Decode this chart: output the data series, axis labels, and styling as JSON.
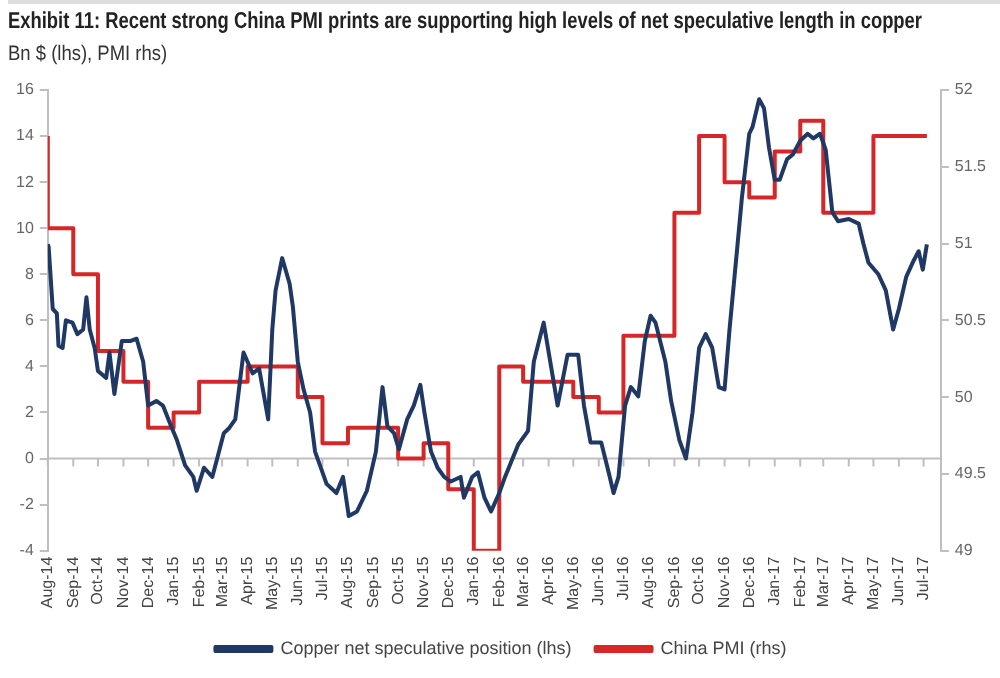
{
  "chart_data": {
    "type": "line",
    "title": "Exhibit 11: Recent strong China PMI prints are supporting high levels of net speculative length in copper",
    "subtitle": "Bn $ (lhs), PMI rhs)",
    "series": [
      {
        "name": "Copper net speculative position (lhs)",
        "color": "#1f3864",
        "x": [
          "2014-08-01",
          "2014-08-02",
          "2014-08-07",
          "2014-08-12",
          "2014-08-14",
          "2014-08-19",
          "2014-08-23",
          "2014-08-31",
          "2014-09-06",
          "2014-09-13",
          "2014-09-17",
          "2014-09-21",
          "2014-09-27",
          "2014-10-01",
          "2014-10-11",
          "2014-10-15",
          "2014-10-21",
          "2014-10-30",
          "2014-11-09",
          "2014-11-17",
          "2014-11-25",
          "2014-12-01",
          "2014-12-11",
          "2014-12-19",
          "2014-12-29",
          "2015-01-05",
          "2015-01-15",
          "2015-01-25",
          "2015-01-29",
          "2015-02-07",
          "2015-02-17",
          "2015-02-23",
          "2015-03-03",
          "2015-03-09",
          "2015-03-17",
          "2015-03-27",
          "2015-04-07",
          "2015-04-15",
          "2015-04-26",
          "2015-05-01",
          "2015-05-05",
          "2015-05-13",
          "2015-05-22",
          "2015-05-26",
          "2015-06-01",
          "2015-06-08",
          "2015-06-16",
          "2015-06-22",
          "2015-06-28",
          "2015-07-06",
          "2015-07-18",
          "2015-07-26",
          "2015-08-02",
          "2015-08-12",
          "2015-08-24",
          "2015-09-04",
          "2015-09-12",
          "2015-09-18",
          "2015-09-26",
          "2015-10-02",
          "2015-10-12",
          "2015-10-20",
          "2015-10-28",
          "2015-11-02",
          "2015-11-10",
          "2015-11-18",
          "2015-11-26",
          "2015-12-04",
          "2015-12-16",
          "2015-12-20",
          "2015-12-30",
          "2016-01-06",
          "2016-01-14",
          "2016-01-22",
          "2016-02-01",
          "2016-02-08",
          "2016-02-24",
          "2016-03-07",
          "2016-03-14",
          "2016-03-26",
          "2016-04-12",
          "2016-04-24",
          "2016-05-07",
          "2016-05-14",
          "2016-05-22",
          "2016-06-04",
          "2016-06-13",
          "2016-06-19",
          "2016-06-25",
          "2016-07-03",
          "2016-07-10",
          "2016-07-19",
          "2016-07-27",
          "2016-08-03",
          "2016-08-09",
          "2016-08-21",
          "2016-08-28",
          "2016-09-07",
          "2016-09-15",
          "2016-09-23",
          "2016-10-01",
          "2016-10-09",
          "2016-10-17",
          "2016-10-25",
          "2016-11-01",
          "2016-11-07",
          "2016-11-16",
          "2016-11-22",
          "2016-12-01",
          "2016-12-05",
          "2016-12-13",
          "2016-12-19",
          "2016-12-25",
          "2017-01-01",
          "2017-01-07",
          "2017-01-16",
          "2017-01-23",
          "2017-02-01",
          "2017-02-10",
          "2017-02-17",
          "2017-02-25",
          "2017-03-04",
          "2017-03-12",
          "2017-03-19",
          "2017-04-01",
          "2017-04-13",
          "2017-04-19",
          "2017-04-25",
          "2017-05-07",
          "2017-05-16",
          "2017-05-25",
          "2017-06-01",
          "2017-06-10",
          "2017-06-19",
          "2017-06-25",
          "2017-06-30",
          "2017-07-05"
        ],
        "values": [
          9.3,
          9.2,
          6.5,
          6.3,
          4.9,
          4.8,
          6.0,
          5.9,
          5.4,
          5.6,
          7.0,
          5.6,
          4.8,
          3.8,
          3.5,
          4.6,
          2.8,
          5.1,
          5.1,
          5.2,
          4.2,
          2.3,
          2.5,
          2.3,
          1.4,
          0.8,
          -0.3,
          -0.8,
          -1.4,
          -0.4,
          -0.8,
          0,
          1.1,
          1.3,
          1.7,
          4.6,
          3.7,
          3.9,
          1.7,
          5.6,
          7.3,
          8.7,
          7.6,
          6.6,
          4.2,
          3.0,
          2.0,
          0.3,
          -0.3,
          -1.1,
          -1.5,
          -0.8,
          -2.5,
          -2.3,
          -1.4,
          0.3,
          3.1,
          1.4,
          1.1,
          0.4,
          1.7,
          2.3,
          3.2,
          2.0,
          0.3,
          -0.4,
          -0.8,
          -1.0,
          -0.8,
          -1.7,
          -0.8,
          -0.6,
          -1.7,
          -2.3,
          -1.5,
          -0.8,
          0.6,
          1.2,
          4.2,
          5.9,
          2.3,
          4.5,
          4.5,
          2.3,
          0.7,
          0.7,
          -0.6,
          -1.5,
          -0.8,
          2.3,
          3.1,
          2.7,
          5.1,
          6.2,
          5.9,
          4.2,
          2.5,
          0.8,
          0,
          2.0,
          4.8,
          5.4,
          4.8,
          3.1,
          3.0,
          5.6,
          9.0,
          11.3,
          14.1,
          14.4,
          15.6,
          15.2,
          13.5,
          12.1,
          12.1,
          13.0,
          13.2,
          13.8,
          14.1,
          13.9,
          14.1,
          13.4,
          10.7,
          10.3,
          10.4,
          10.2,
          9.3,
          8.5,
          8.0,
          7.3,
          5.6,
          6.5,
          7.9,
          8.6,
          9.0,
          8.2,
          9.3
        ]
      },
      {
        "name": "China PMI (rhs)",
        "color": "#d62728",
        "type": "step",
        "axis": "y2",
        "x": [
          "2014-08",
          "2014-08",
          "2014-09",
          "2014-10",
          "2014-11",
          "2014-12",
          "2015-01",
          "2015-02",
          "2015-03",
          "2015-04",
          "2015-05",
          "2015-06",
          "2015-07",
          "2015-08",
          "2015-09",
          "2015-10",
          "2015-11",
          "2015-12",
          "2016-01",
          "2016-02",
          "2016-03",
          "2016-04",
          "2016-05",
          "2016-06",
          "2016-07",
          "2016-08",
          "2016-09",
          "2016-10",
          "2016-11",
          "2016-12",
          "2017-01",
          "2017-02",
          "2017-03",
          "2017-04",
          "2017-05",
          "2017-06",
          "2017-07-05"
        ],
        "values": [
          51.7,
          51.1,
          51.1,
          50.8,
          50.3,
          50.1,
          49.8,
          49.9,
          50.1,
          50.1,
          50.2,
          50.2,
          50.0,
          49.7,
          49.8,
          49.8,
          49.6,
          49.7,
          49.4,
          49.0,
          50.2,
          50.1,
          50.1,
          50.0,
          49.9,
          50.4,
          50.4,
          51.2,
          51.7,
          51.4,
          51.3,
          51.6,
          51.8,
          51.2,
          51.2,
          51.7,
          51.7
        ]
      }
    ],
    "xlim": [
      "2014-08",
      "2017-07-22"
    ],
    "xticks": [
      {
        "value": "2014-08",
        "label": "Aug-14"
      },
      {
        "value": "2014-09",
        "label": "Sep-14"
      },
      {
        "value": "2014-10",
        "label": "Oct-14"
      },
      {
        "value": "2014-11",
        "label": "Nov-14"
      },
      {
        "value": "2014-12",
        "label": "Dec-14"
      },
      {
        "value": "2015-01",
        "label": "Jan-15"
      },
      {
        "value": "2015-02",
        "label": "Feb-15"
      },
      {
        "value": "2015-03",
        "label": "Mar-15"
      },
      {
        "value": "2015-04",
        "label": "Apr-15"
      },
      {
        "value": "2015-05",
        "label": "May-15"
      },
      {
        "value": "2015-06",
        "label": "Jun-15"
      },
      {
        "value": "2015-07",
        "label": "Jul-15"
      },
      {
        "value": "2015-08",
        "label": "Aug-15"
      },
      {
        "value": "2015-09",
        "label": "Sep-15"
      },
      {
        "value": "2015-10",
        "label": "Oct-15"
      },
      {
        "value": "2015-11",
        "label": "Nov-15"
      },
      {
        "value": "2015-12",
        "label": "Dec-15"
      },
      {
        "value": "2016-01",
        "label": "Jan-16"
      },
      {
        "value": "2016-02",
        "label": "Feb-16"
      },
      {
        "value": "2016-03",
        "label": "Mar-16"
      },
      {
        "value": "2016-04",
        "label": "Apr-16"
      },
      {
        "value": "2016-05",
        "label": "May-16"
      },
      {
        "value": "2016-06",
        "label": "Jun-16"
      },
      {
        "value": "2016-07",
        "label": "Jul-16"
      },
      {
        "value": "2016-08",
        "label": "Aug-16"
      },
      {
        "value": "2016-09",
        "label": "Sep-16"
      },
      {
        "value": "2016-10",
        "label": "Oct-16"
      },
      {
        "value": "2016-11",
        "label": "Nov-16"
      },
      {
        "value": "2016-12",
        "label": "Dec-16"
      },
      {
        "value": "2017-01",
        "label": "Jan-17"
      },
      {
        "value": "2017-02",
        "label": "Feb-17"
      },
      {
        "value": "2017-03",
        "label": "Mar-17"
      },
      {
        "value": "2017-04",
        "label": "Apr-17"
      },
      {
        "value": "2017-05",
        "label": "May-17"
      },
      {
        "value": "2017-06",
        "label": "Jun-17"
      },
      {
        "value": "2017-07",
        "label": "Jul-17"
      }
    ],
    "ylim": [
      -4,
      16
    ],
    "yticks": [
      -4,
      -2,
      0,
      2,
      4,
      6,
      8,
      10,
      12,
      14,
      16
    ],
    "y2lim": [
      49,
      52
    ],
    "y2ticks": [
      49,
      49.5,
      50,
      50.5,
      51,
      51.5,
      52
    ],
    "ref_lines": [
      {
        "axis": "y",
        "value": 0,
        "color": "#bfbfbf"
      }
    ],
    "grid": false,
    "legend": "bottom",
    "marker": "none",
    "line_style": "solid"
  }
}
